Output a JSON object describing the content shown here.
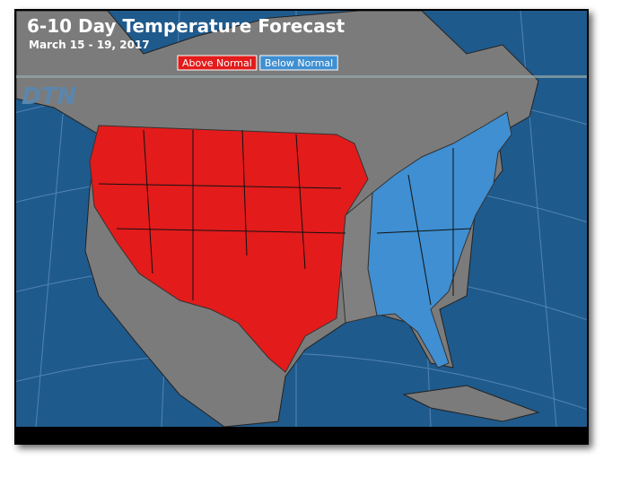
{
  "header": {
    "title": "6-10 Day Temperature Forecast",
    "subtitle": "March 15 - 19, 2017"
  },
  "legend": {
    "items": [
      {
        "label": "Above Normal",
        "color": "#e31b1b"
      },
      {
        "label": "Below Normal",
        "color": "#3f8fd2"
      }
    ]
  },
  "logo": "DTN"
}
